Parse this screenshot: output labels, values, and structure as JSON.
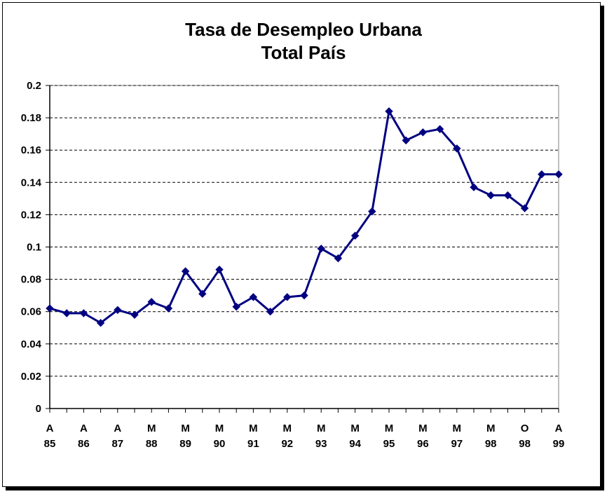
{
  "chart_data": {
    "type": "line",
    "title": "Tasa de Desempleo Urbana",
    "subtitle": "Total País",
    "xlabel": "",
    "ylabel": "",
    "ylim": [
      0,
      0.2
    ],
    "yticks": [
      "0",
      "0.02",
      "0.04",
      "0.06",
      "0.08",
      "0.1",
      "0.12",
      "0.14",
      "0.16",
      "0.18",
      "0.2"
    ],
    "grid": "horizontal dashed",
    "legend": "none",
    "series_color": "#000080",
    "x_tick_labels": [
      [
        "A",
        "85"
      ],
      [
        "A",
        "86"
      ],
      [
        "A",
        "87"
      ],
      [
        "M",
        "88"
      ],
      [
        "M",
        "89"
      ],
      [
        "M",
        "90"
      ],
      [
        "M",
        "91"
      ],
      [
        "M",
        "92"
      ],
      [
        "M",
        "93"
      ],
      [
        "M",
        "94"
      ],
      [
        "M",
        "95"
      ],
      [
        "M",
        "96"
      ],
      [
        "M",
        "97"
      ],
      [
        "M",
        "98"
      ],
      [
        "O",
        "98"
      ],
      [
        "A",
        "99"
      ]
    ],
    "x": [
      "A 85",
      "",
      "A 86",
      "",
      "A 87",
      "",
      "M 88",
      "",
      "M 89",
      "",
      "M 90",
      "",
      "M 91",
      "",
      "M 92",
      "",
      "M 93",
      "",
      "M 94",
      "",
      "M 95",
      "",
      "M 96",
      "",
      "M 97",
      "",
      "M 98",
      "",
      "O 98",
      "",
      "A 99"
    ],
    "values": [
      0.062,
      0.059,
      0.059,
      0.053,
      0.061,
      0.058,
      0.066,
      0.062,
      0.085,
      0.071,
      0.086,
      0.063,
      0.069,
      0.06,
      0.069,
      0.07,
      0.099,
      0.093,
      0.107,
      0.122,
      0.184,
      0.166,
      0.171,
      0.173,
      0.161,
      0.137,
      0.132,
      0.132,
      0.124,
      0.145,
      0.145
    ]
  }
}
